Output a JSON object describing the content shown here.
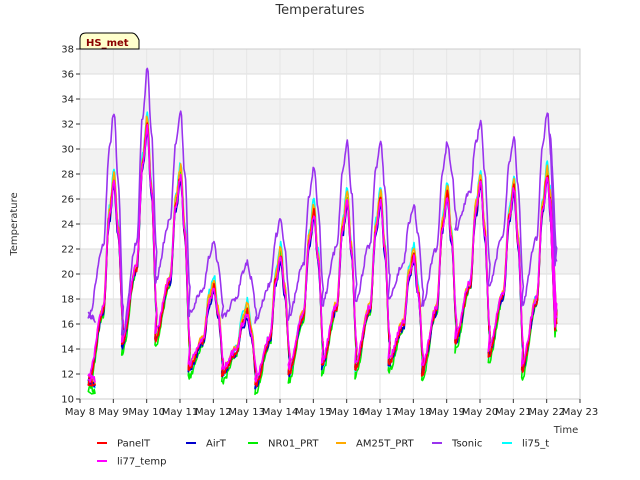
{
  "chart_data": {
    "type": "line",
    "title": "Temperatures",
    "xlabel": "Time",
    "ylabel": "Temperature",
    "badge": "HS_met",
    "ylim": [
      10,
      38
    ],
    "yticks": [
      10,
      12,
      14,
      16,
      18,
      20,
      22,
      24,
      26,
      28,
      30,
      32,
      34,
      36,
      38
    ],
    "xlim": [
      8,
      23
    ],
    "xticks": [
      8,
      9,
      10,
      11,
      12,
      13,
      14,
      15,
      16,
      17,
      18,
      19,
      20,
      21,
      22,
      23
    ],
    "xtick_labels": [
      "May 8",
      "May 9",
      "May 10",
      "May 11",
      "May 12",
      "May 13",
      "May 14",
      "May 15",
      "May 16",
      "May 17",
      "May 18",
      "May 19",
      "May 20",
      "May 21",
      "May 22",
      "May 23"
    ],
    "grid": true,
    "legend_position": "bottom",
    "daily_extrema": {
      "air_min": [
        11.3,
        14.2,
        14.8,
        12.3,
        12.0,
        11.0,
        12.0,
        12.6,
        12.4,
        12.8,
        12.0,
        14.5,
        13.5,
        12.3,
        15.5
      ],
      "air_max": [
        null,
        27.5,
        32.0,
        28.0,
        19.0,
        17.0,
        21.5,
        25.0,
        26.0,
        26.0,
        21.5,
        26.5,
        27.5,
        27.0,
        28.0
      ],
      "tsonic_min": [
        16.5,
        15.0,
        19.5,
        16.8,
        16.5,
        16.3,
        16.5,
        17.5,
        17.8,
        18.2,
        17.5,
        23.5,
        19.0,
        17.5,
        20.5
      ],
      "tsonic_max": [
        null,
        33.0,
        36.5,
        33.0,
        22.5,
        21.0,
        24.5,
        28.5,
        30.5,
        30.8,
        25.5,
        30.5,
        32.2,
        31.0,
        33.0
      ]
    },
    "series": [
      {
        "name": "PanelT",
        "color": "#ff0000",
        "offset_min": 0.0,
        "offset_max": 0.0
      },
      {
        "name": "AirT",
        "color": "#0000cc",
        "offset_min": 0.0,
        "offset_max": -0.5
      },
      {
        "name": "NR01_PRT",
        "color": "#00ee00",
        "offset_min": -0.6,
        "offset_max": 0.3
      },
      {
        "name": "AM25T_PRT",
        "color": "#ffaa00",
        "offset_min": 0.2,
        "offset_max": 0.6
      },
      {
        "name": "Tsonic",
        "color": "#9933ee",
        "offset_min": 0.0,
        "offset_max": 0.0
      },
      {
        "name": "li75_t",
        "color": "#00ffff",
        "offset_min": 0.0,
        "offset_max": 0.9
      },
      {
        "name": "li77_temp",
        "color": "#ff00ff",
        "offset_min": 0.5,
        "offset_max": -0.2
      }
    ]
  }
}
